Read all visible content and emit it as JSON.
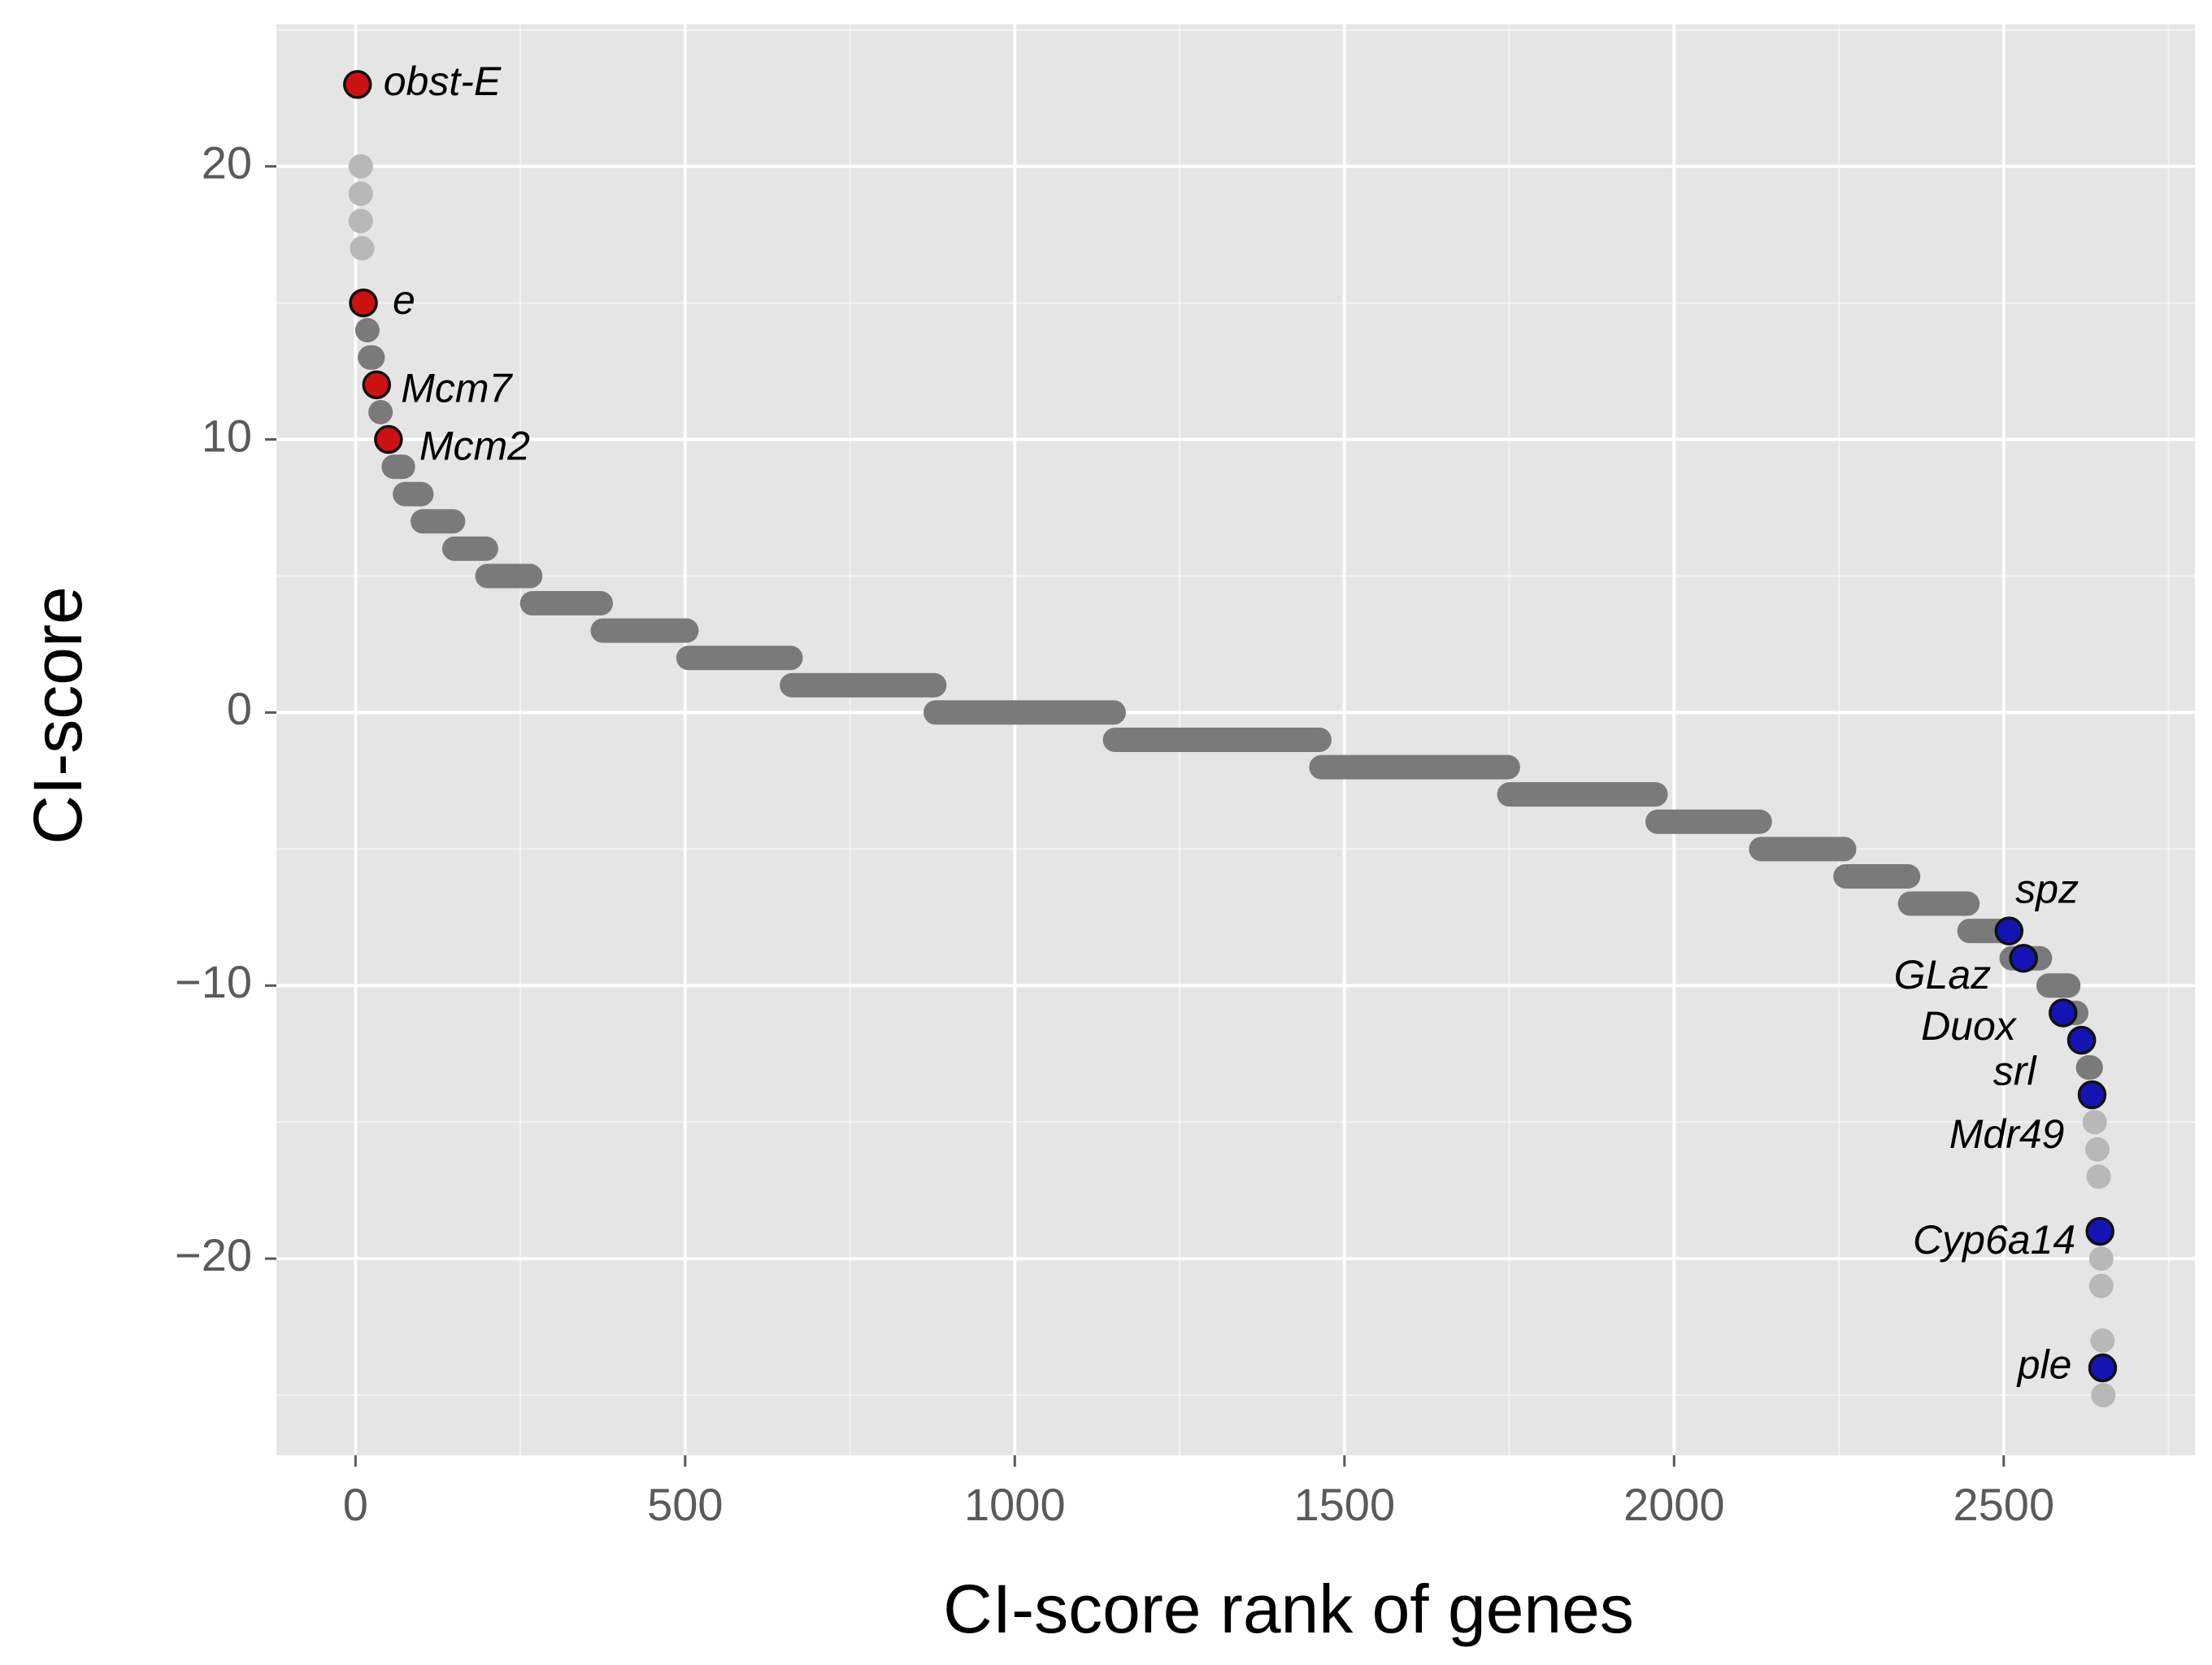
{
  "chart_data": {
    "type": "scatter",
    "title": "",
    "xlabel": "CI-score rank of genes",
    "ylabel": "CI-score",
    "xlim": [
      -120,
      2790
    ],
    "ylim": [
      -27.2,
      25.2
    ],
    "xticks": [
      0,
      500,
      1000,
      1500,
      2000,
      2500
    ],
    "xtick_labels": [
      "0",
      "500",
      "1000",
      "1500",
      "2000",
      "2500"
    ],
    "yticks": [
      -20,
      -10,
      0,
      10,
      20
    ],
    "ytick_labels": [
      "−20",
      "−10",
      "0",
      "10",
      "20"
    ],
    "grid": true,
    "legend": "none",
    "colors": {
      "panel_background": "#e5e5e5",
      "grid": "#ffffff",
      "points": "#7a7a7a",
      "points_light": "#b8b8b8",
      "highlight_top": "#cc1111",
      "highlight_bottom": "#1414b4"
    },
    "score_bands": [
      {
        "y": 20,
        "x_from": 8,
        "x_to": 8
      },
      {
        "y": 19,
        "x_from": 8,
        "x_to": 8
      },
      {
        "y": 18,
        "x_from": 8,
        "x_to": 8
      },
      {
        "y": 17,
        "x_from": 10,
        "x_to": 10
      },
      {
        "y": 14,
        "x_from": 18,
        "x_to": 18
      },
      {
        "y": 13,
        "x_from": 22,
        "x_to": 26
      },
      {
        "y": 11,
        "x_from": 38,
        "x_to": 40
      },
      {
        "y": 9,
        "x_from": 58,
        "x_to": 72
      },
      {
        "y": 8,
        "x_from": 75,
        "x_to": 100
      },
      {
        "y": 7,
        "x_from": 102,
        "x_to": 148
      },
      {
        "y": 6,
        "x_from": 150,
        "x_to": 198
      },
      {
        "y": 5,
        "x_from": 200,
        "x_to": 265
      },
      {
        "y": 4,
        "x_from": 268,
        "x_to": 372
      },
      {
        "y": 3,
        "x_from": 375,
        "x_to": 502
      },
      {
        "y": 2,
        "x_from": 505,
        "x_to": 660
      },
      {
        "y": 1,
        "x_from": 662,
        "x_to": 878
      },
      {
        "y": 0,
        "x_from": 880,
        "x_to": 1150
      },
      {
        "y": -1,
        "x_from": 1152,
        "x_to": 1462
      },
      {
        "y": -2,
        "x_from": 1465,
        "x_to": 1748
      },
      {
        "y": -3,
        "x_from": 1750,
        "x_to": 1972
      },
      {
        "y": -4,
        "x_from": 1975,
        "x_to": 2130
      },
      {
        "y": -5,
        "x_from": 2132,
        "x_to": 2258
      },
      {
        "y": -6,
        "x_from": 2260,
        "x_to": 2355
      },
      {
        "y": -7,
        "x_from": 2358,
        "x_to": 2445
      },
      {
        "y": -8,
        "x_from": 2448,
        "x_to": 2505
      },
      {
        "y": -9,
        "x_from": 2512,
        "x_to": 2555
      },
      {
        "y": -10,
        "x_from": 2568,
        "x_to": 2598
      },
      {
        "y": -11,
        "x_from": 2600,
        "x_to": 2610
      },
      {
        "y": -12,
        "x_from": 2615,
        "x_to": 2622
      },
      {
        "y": -13,
        "x_from": 2628,
        "x_to": 2632
      },
      {
        "y": -15,
        "x_from": 2638,
        "x_to": 2640
      },
      {
        "y": -16,
        "x_from": 2642,
        "x_to": 2642
      },
      {
        "y": -17,
        "x_from": 2644,
        "x_to": 2644
      },
      {
        "y": -20,
        "x_from": 2648,
        "x_to": 2648
      },
      {
        "y": -21,
        "x_from": 2648,
        "x_to": 2648
      },
      {
        "y": -23,
        "x_from": 2650,
        "x_to": 2650
      },
      {
        "y": -25,
        "x_from": 2651,
        "x_to": 2651
      }
    ],
    "highlighted_genes": [
      {
        "gene": "obst-E",
        "x": 3,
        "y": 23,
        "group": "top"
      },
      {
        "gene": "e",
        "x": 12,
        "y": 15,
        "group": "top"
      },
      {
        "gene": "Mcm7",
        "x": 32,
        "y": 12,
        "group": "top"
      },
      {
        "gene": "Mcm2",
        "x": 50,
        "y": 10,
        "group": "top"
      },
      {
        "gene": "spz",
        "x": 2508,
        "y": -8,
        "group": "bottom"
      },
      {
        "gene": "GLaz",
        "x": 2530,
        "y": -9,
        "group": "bottom"
      },
      {
        "gene": "Duox",
        "x": 2590,
        "y": -11,
        "group": "bottom"
      },
      {
        "gene": "srl",
        "x": 2618,
        "y": -12,
        "group": "bottom"
      },
      {
        "gene": "Mdr49",
        "x": 2634,
        "y": -14,
        "group": "bottom"
      },
      {
        "gene": "Cyp6a14",
        "x": 2646,
        "y": -19,
        "group": "bottom"
      },
      {
        "gene": "ple",
        "x": 2650,
        "y": -24,
        "group": "bottom"
      }
    ]
  }
}
